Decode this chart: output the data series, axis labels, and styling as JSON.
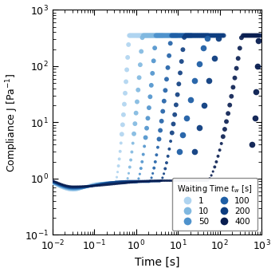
{
  "xlabel": "Time [s]",
  "ylabel": "Compliance J [Pa$^{-1}$]",
  "xlim_log": [
    -2,
    3
  ],
  "ylim_log": [
    -1,
    3
  ],
  "background_color": "#ffffff",
  "series": [
    {
      "label": "1",
      "color": "#afd4f0",
      "t_yield_log": 0.0,
      "J_plateau": 0.82,
      "J_dip": 0.62,
      "t_dip_log": -1.5
    },
    {
      "label": "10",
      "color": "#80b8e0",
      "t_yield_log": 0.35,
      "J_plateau": 0.84,
      "J_dip": 0.64,
      "t_dip_log": -1.5
    },
    {
      "label": "50",
      "color": "#4e92cc",
      "t_yield_log": 0.7,
      "J_plateau": 0.86,
      "J_dip": 0.66,
      "t_dip_log": -1.5
    },
    {
      "label": "100",
      "color": "#1f5fa6",
      "t_yield_log": 1.1,
      "J_plateau": 0.88,
      "J_dip": 0.68,
      "t_dip_log": -1.5
    },
    {
      "label": "200",
      "color": "#0d3d80",
      "t_yield_log": 1.45,
      "J_plateau": 0.9,
      "J_dip": 0.7,
      "t_dip_log": -1.5
    },
    {
      "label": "400",
      "color": "#081d50",
      "t_yield_log": 2.95,
      "J_plateau": 0.92,
      "J_dip": 0.72,
      "t_dip_log": -1.5
    }
  ],
  "legend_colors": [
    "#afd4f0",
    "#80b8e0",
    "#4e92cc",
    "#1f5fa6",
    "#0d3d80",
    "#081d50"
  ],
  "legend_labels": [
    "1",
    "10",
    "50",
    "100",
    "200",
    "400"
  ]
}
